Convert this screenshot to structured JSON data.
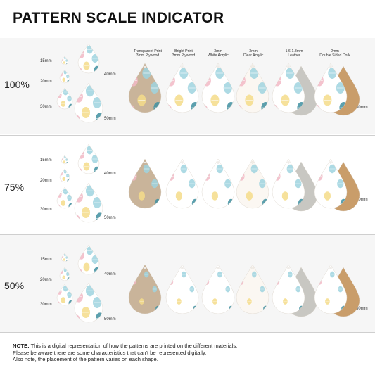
{
  "title": "PATTERN SCALE INDICATOR",
  "materials": [
    {
      "line1": "Transparent Print",
      "line2": "3mm Plywood"
    },
    {
      "line1": "Bright Print",
      "line2": "3mm Plywood"
    },
    {
      "line1": "3mm",
      "line2": "White Acrylic"
    },
    {
      "line1": "3mm",
      "line2": "Clear Acrylic"
    },
    {
      "line1": "1.6-1.8mm",
      "line2": "Leather"
    },
    {
      "line1": "2mm",
      "line2": "Double Sided Cork"
    }
  ],
  "rows": [
    {
      "scale": "100%",
      "s15": "15mm",
      "s20": "20mm",
      "s30": "30mm",
      "s40": "40mm",
      "s50": "50mm",
      "s60": "60mm"
    },
    {
      "scale": "75%",
      "s15": "15mm",
      "s20": "20mm",
      "s30": "30mm",
      "s40": "40mm",
      "s50": "50mm",
      "s60": "60mm"
    },
    {
      "scale": "50%",
      "s15": "15mm",
      "s20": "20mm",
      "s30": "30mm",
      "s40": "40mm",
      "s50": "50mm",
      "s60": "60mm"
    }
  ],
  "note": {
    "label": "NOTE:",
    "line1": " This is a digital representation of how the patterns are printed on the different materials.",
    "line2": "Please be aware there are some characteristics that can't be represented digitally.",
    "line3": "Also note, the placement of the pattern varies on each shape."
  },
  "colors": {
    "plywood": "#c9b49a",
    "pink": "#f2b8c6",
    "blue": "#9fd3df",
    "teal": "#3f8fa0",
    "yellow": "#f4dc8a",
    "leather": "#c8c7c2",
    "cork": "#c99d6a"
  }
}
